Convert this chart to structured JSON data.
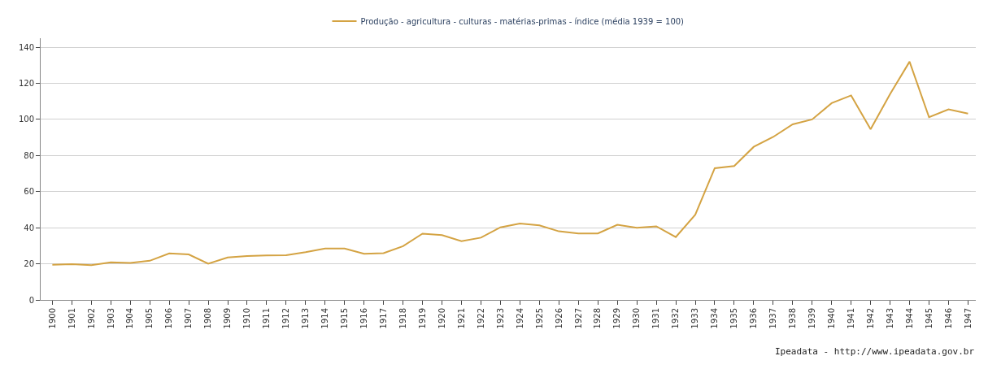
{
  "chart_data": {
    "type": "line",
    "categories": [
      "1900",
      "1901",
      "1902",
      "1903",
      "1904",
      "1905",
      "1906",
      "1907",
      "1908",
      "1909",
      "1910",
      "1911",
      "1912",
      "1913",
      "1914",
      "1915",
      "1916",
      "1917",
      "1918",
      "1919",
      "1920",
      "1921",
      "1922",
      "1923",
      "1924",
      "1925",
      "1926",
      "1927",
      "1928",
      "1929",
      "1930",
      "1931",
      "1932",
      "1933",
      "1934",
      "1935",
      "1936",
      "1937",
      "1938",
      "1939",
      "1940",
      "1941",
      "1942",
      "1943",
      "1944",
      "1945",
      "1946",
      "1947"
    ],
    "series": [
      {
        "name": "Produção - agricultura - culturas - matérias-primas - índice (média 1939 = 100)",
        "color": "#d4a343",
        "values": [
          19.5,
          19.8,
          19.3,
          20.8,
          20.5,
          21.7,
          25.8,
          25.2,
          20.1,
          23.5,
          24.3,
          24.7,
          24.8,
          26.5,
          28.5,
          28.5,
          25.6,
          25.9,
          29.8,
          36.7,
          35.9,
          32.6,
          34.5,
          40.2,
          42.3,
          41.3,
          38.0,
          36.8,
          36.8,
          41.6,
          40.0,
          40.8,
          34.8,
          47.2,
          73.0,
          74.2,
          84.8,
          90.3,
          97.3,
          100,
          109,
          113.3,
          94.6,
          114,
          132,
          101.2,
          105.6,
          103.2
        ]
      }
    ],
    "ylim": [
      0,
      145
    ],
    "yticks": [
      0,
      20,
      40,
      60,
      80,
      100,
      120,
      140
    ],
    "grid": "y",
    "legend": "top",
    "marker": "none",
    "line_style": "solid",
    "annotations": [
      "Ipeadata - http://www.ipeadata.gov.br"
    ]
  }
}
